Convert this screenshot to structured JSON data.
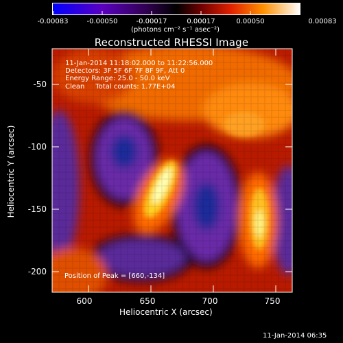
{
  "colorbar": {
    "tick_labels": [
      "-0.00083",
      "-0.00050",
      "-0.00017",
      "0.00017",
      "0.00050",
      "0.00083"
    ],
    "unit_label": "(photons cm⁻² s⁻¹ asec⁻²)",
    "colors": [
      "#0000ff",
      "#6a00c8",
      "#200030",
      "#000000",
      "#8b0000",
      "#ff3000",
      "#ff9800",
      "#ffffff"
    ]
  },
  "title": "Reconstructed RHESSI Image",
  "info": {
    "line1": "11-Jan-2014 11:18:02.000 to 11:22:56.000",
    "line2": "Detectors: 3F 5F 6F 7F 8F 9F, Att 0",
    "line3": "Energy Range: 25.0 - 50.0 keV",
    "line4": "Clean     Total counts: 1.77E+04",
    "peak": "Position of Peak = [660,-134]"
  },
  "axes": {
    "xlabel": "Heliocentric X (arcsec)",
    "ylabel": "Heliocentric Y (arcsec)",
    "x_ticks": [
      "600",
      "650",
      "700",
      "750"
    ],
    "y_ticks": [
      "-50",
      "-100",
      "-150",
      "-200"
    ]
  },
  "timestamp": "11-Jan-2014 06:35"
}
